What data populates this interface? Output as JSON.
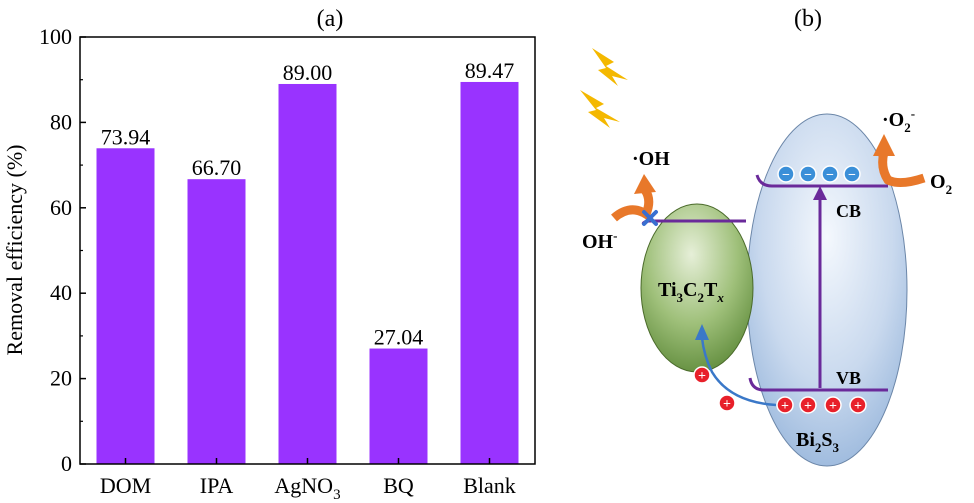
{
  "panels": {
    "a_label": "(a)",
    "b_label": "(b)"
  },
  "chart_data": {
    "type": "bar",
    "ylabel": "Removal efficiency (%)",
    "ylim": [
      0,
      100
    ],
    "yticks": [
      "0",
      "20",
      "40",
      "60",
      "80",
      "100"
    ],
    "categories": [
      {
        "main": "DOM",
        "sub": ""
      },
      {
        "main": "IPA",
        "sub": ""
      },
      {
        "main": "AgNO",
        "sub": "3"
      },
      {
        "main": "BQ",
        "sub": ""
      },
      {
        "main": "Blank",
        "sub": ""
      }
    ],
    "values": [
      73.94,
      66.7,
      89.0,
      27.04,
      89.47
    ],
    "data_labels": [
      "73.94",
      "66.70",
      "89.00",
      "27.04",
      "89.47"
    ],
    "bar_color": "#9933ff",
    "grid": false
  },
  "diagram": {
    "bi2s3": {
      "main": "Bi",
      "sub1": "2",
      "mid": "S",
      "sub2": "3"
    },
    "ti3c2tx": {
      "a": "Ti",
      "s1": "3",
      "b": "C",
      "s2": "2",
      "c": "T",
      "s3": "x"
    },
    "cb_label": "CB",
    "vb_label": "VB",
    "oh_radical": "·OH",
    "oh_minus": {
      "main": "OH",
      "sup": "-"
    },
    "o2_radical": {
      "pre": "·O",
      "sub": "2",
      "sup": "-"
    },
    "o2": {
      "main": "O",
      "sub": "2"
    },
    "electron_symbol": "−",
    "hole_symbol": "+",
    "colors": {
      "band_line": "#6a2a9a",
      "arrow_orange": "#e8782a",
      "electron": "#3a8fd8",
      "hole": "#e8202a",
      "lightning": "#f4b800",
      "cross": "#3a6fd0",
      "transfer_arrow": "#3a78c8"
    }
  }
}
